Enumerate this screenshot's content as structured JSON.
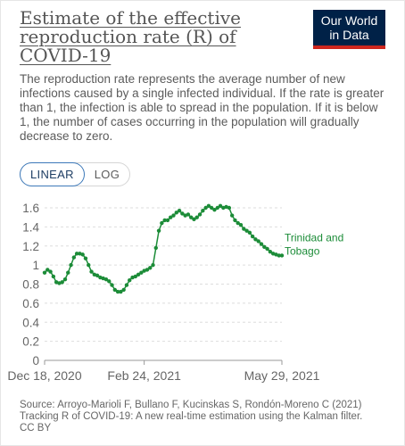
{
  "header": {
    "title": "Estimate of the effective reproduction rate (R) of COVID-19",
    "subtitle": "The reproduction rate represents the average number of new infections caused by a single infected individual. If the rate is greater than 1, the infection is able to spread in the population. If it is below 1, the number of cases occurring in the population will gradually decrease to zero.",
    "logo_line1": "Our World",
    "logo_line2": "in Data"
  },
  "controls": {
    "linear_label": "LINEAR",
    "log_label": "LOG"
  },
  "footer": {
    "source": "Source: Arroyo-Marioli F, Bullano F, Kucinskas S, Rondón-Moreno C (2021) Tracking R of COVID-19: A new real-time estimation using the Kalman filter.",
    "license": "CC BY"
  },
  "colors": {
    "series": "#1c8c38",
    "logo_bg": "#002147",
    "logo_accent": "#ce261e",
    "active_toggle": "#3d79b9"
  },
  "chart_data": {
    "type": "line",
    "title": "Estimate of the effective reproduction rate (R) of COVID-19",
    "xlabel": "",
    "ylabel": "",
    "ylim": [
      0,
      1.6
    ],
    "yticks": [
      "0",
      "0.2",
      "0.4",
      "0.6",
      "0.8",
      "1",
      "1.2",
      "1.4",
      "1.6"
    ],
    "xticks": [
      "Dec 18, 2020",
      "Feb 24, 2021",
      "May 29, 2021"
    ],
    "x_range": [
      "2020-12-18",
      "2021-05-29"
    ],
    "grid": true,
    "series": [
      {
        "name": "Trinidad and Tobago",
        "x": [
          "2020-12-18",
          "2020-12-20",
          "2020-12-22",
          "2020-12-24",
          "2020-12-26",
          "2020-12-28",
          "2020-12-30",
          "2021-01-01",
          "2021-01-03",
          "2021-01-05",
          "2021-01-07",
          "2021-01-09",
          "2021-01-11",
          "2021-01-13",
          "2021-01-15",
          "2021-01-17",
          "2021-01-19",
          "2021-01-21",
          "2021-01-23",
          "2021-01-25",
          "2021-01-27",
          "2021-01-29",
          "2021-01-31",
          "2021-02-02",
          "2021-02-04",
          "2021-02-06",
          "2021-02-08",
          "2021-02-10",
          "2021-02-12",
          "2021-02-14",
          "2021-02-16",
          "2021-02-18",
          "2021-02-20",
          "2021-02-22",
          "2021-02-24",
          "2021-02-26",
          "2021-02-28",
          "2021-03-02",
          "2021-03-04",
          "2021-03-06",
          "2021-03-08",
          "2021-03-10",
          "2021-03-12",
          "2021-03-14",
          "2021-03-16",
          "2021-03-18",
          "2021-03-20",
          "2021-03-22",
          "2021-03-24",
          "2021-03-26",
          "2021-03-28",
          "2021-03-30",
          "2021-04-01",
          "2021-04-03",
          "2021-04-05",
          "2021-04-07",
          "2021-04-09",
          "2021-04-11",
          "2021-04-13",
          "2021-04-15",
          "2021-04-17",
          "2021-04-19",
          "2021-04-21",
          "2021-04-23",
          "2021-04-25",
          "2021-04-27",
          "2021-04-29",
          "2021-05-01",
          "2021-05-03",
          "2021-05-05",
          "2021-05-07",
          "2021-05-09",
          "2021-05-11",
          "2021-05-13",
          "2021-05-15",
          "2021-05-17",
          "2021-05-19",
          "2021-05-21",
          "2021-05-23",
          "2021-05-25",
          "2021-05-27",
          "2021-05-29"
        ],
        "values": [
          0.92,
          0.95,
          0.93,
          0.88,
          0.82,
          0.81,
          0.82,
          0.85,
          0.92,
          1.0,
          1.08,
          1.12,
          1.12,
          1.11,
          1.07,
          1.0,
          0.93,
          0.9,
          0.89,
          0.87,
          0.86,
          0.85,
          0.83,
          0.79,
          0.74,
          0.72,
          0.72,
          0.74,
          0.79,
          0.84,
          0.87,
          0.88,
          0.9,
          0.92,
          0.94,
          0.95,
          0.97,
          1.0,
          1.18,
          1.36,
          1.44,
          1.47,
          1.47,
          1.5,
          1.52,
          1.55,
          1.57,
          1.54,
          1.52,
          1.53,
          1.5,
          1.48,
          1.5,
          1.53,
          1.57,
          1.6,
          1.62,
          1.6,
          1.58,
          1.6,
          1.62,
          1.6,
          1.61,
          1.6,
          1.52,
          1.47,
          1.44,
          1.42,
          1.38,
          1.36,
          1.34,
          1.3,
          1.27,
          1.25,
          1.22,
          1.19,
          1.17,
          1.14,
          1.12,
          1.11,
          1.1,
          1.1
        ]
      }
    ]
  }
}
